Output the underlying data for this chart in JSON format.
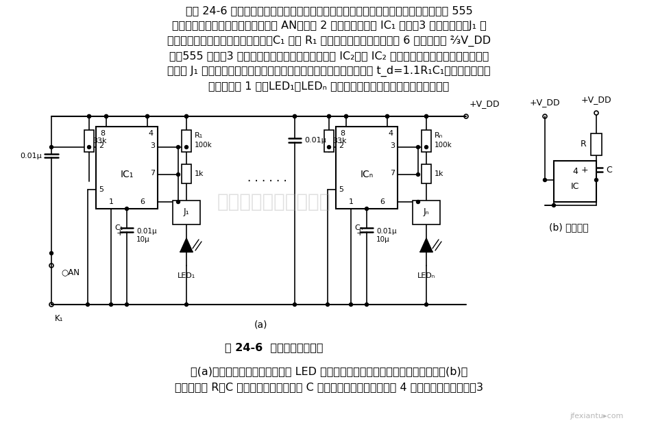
{
  "bg_color": "#ffffff",
  "top_text": [
    "如图 24-6 所示，该电路用于在对多路温度测试时，切换对应通道的热电偶。各路均以 555",
    "为核心组成单稳延时电路，如按一下 AN，由于 2 脚呈低电位，将 IC₁ 置位，3 脚呈高电平，J₁ 吸",
    "合，将该通道的热电偶接通。同时，C₁ 通过 R₁ 对其充电，当充电电压达到 6 脚阙值电平 ⅔V_DD",
    "时，555 复位，3 脚转呈低电平，继而又触发第二级 IC₂，使 IC₂ 置位，接通第二路热电偶，依次触",
    "发。若 J₁ 闭合，可进行循环监测。每级的延时时间（即测量时间）为 t_d=1.1R₁C₁，图示参数对应",
    "的延时约为 1 秒。LED₁～LEDₙ 发光二极管也依次发亮，作为监测指示。"
  ],
  "caption": "图 24-6  多路温度测试电路",
  "bottom_text": [
    "图(a)电路当开机通电时，有几支 LED 发光管同时闪烁现象，为此，改进电路如图(b)所",
    "示。在接入 R、C 网络后，开机时，由于 C 上电压不能突变，使复位端 4 脚处于强制复位状态，3"
  ],
  "watermark_text": "苏州将睿科技有限公司",
  "watermark2": "jfexiantu▸com"
}
